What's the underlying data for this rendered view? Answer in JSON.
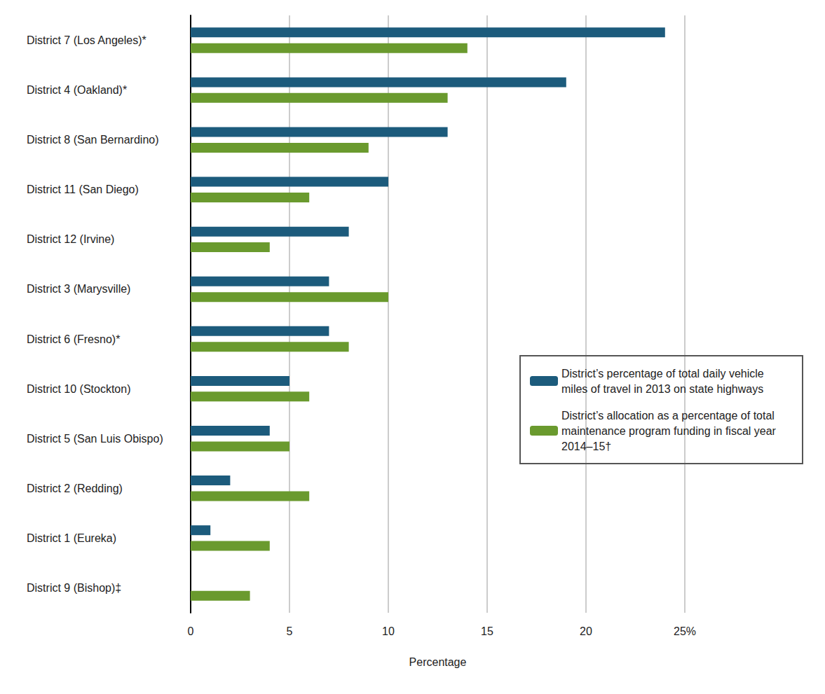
{
  "chart_data": {
    "type": "bar",
    "orientation": "horizontal",
    "x_label": "Percentage",
    "categories": [
      "District 7 (Los Angeles)*",
      "District 4 (Oakland)*",
      "District 8 (San Bernardino)",
      "District 11 (San Diego)",
      "District 12 (Irvine)",
      "District 3 (Marysville)",
      "District 6 (Fresno)*",
      "District 10 (Stockton)",
      "District 5 (San Luis Obispo)",
      "District 2 (Redding)",
      "District 1 (Eureka)",
      "District 9 (Bishop)‡"
    ],
    "series": [
      {
        "name": "District’s percentage of total daily vehicle miles of travel in 2013 on state highways",
        "color": "#1c5b7c",
        "values": [
          24,
          19,
          13,
          10,
          8,
          7,
          7,
          5,
          4,
          2,
          1,
          null
        ]
      },
      {
        "name": "District’s allocation as a percentage of total maintenance program funding in fiscal year 2014–15†",
        "color": "#6a9a2e",
        "values": [
          14,
          13,
          9,
          6,
          4,
          10,
          8,
          6,
          5,
          6,
          4,
          3
        ]
      }
    ],
    "xlim": [
      0,
      25
    ],
    "xticks": [
      0,
      5,
      10,
      15,
      20,
      {
        "value": 25,
        "label": "25%"
      }
    ],
    "grid": true,
    "legend": "right"
  }
}
